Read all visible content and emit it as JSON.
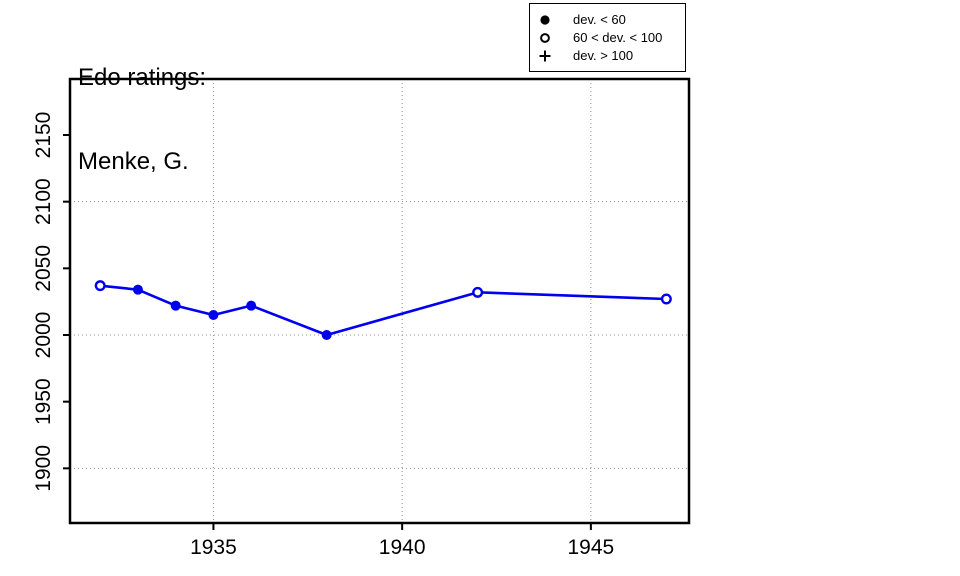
{
  "title": {
    "line1": "Edo ratings:",
    "line2": "Menke, G."
  },
  "legend": {
    "items": [
      {
        "icon": "filled-circle-icon",
        "label": "dev. < 60"
      },
      {
        "icon": "open-circle-icon",
        "label": "60 < dev. < 100"
      },
      {
        "icon": "plus-icon",
        "label": "dev. > 100"
      }
    ]
  },
  "chart_data": {
    "type": "line",
    "title": "Edo ratings: Menke, G.",
    "xlabel": "",
    "ylabel": "",
    "series": [
      {
        "name": "Edo rating",
        "x": [
          1932,
          1933,
          1934,
          1935,
          1936,
          1938,
          1942,
          1947
        ],
        "y": [
          2037,
          2034,
          2022,
          2015,
          2022,
          2000,
          2032,
          2027
        ],
        "point_style": [
          "open",
          "filled",
          "filled",
          "filled",
          "filled",
          "filled",
          "open",
          "open"
        ],
        "point_style_meaning": {
          "filled": "dev. < 60",
          "open": "60 < dev. < 100",
          "plus": "dev. > 100"
        }
      }
    ],
    "xticks": [
      1935,
      1940,
      1945
    ],
    "yticks": [
      1900,
      1950,
      2000,
      2050,
      2100,
      2150
    ],
    "grid_x": [
      1935,
      1940,
      1945
    ],
    "grid_y": [
      1900,
      2000,
      2100
    ],
    "xlim": [
      1931.2,
      1947.6
    ],
    "ylim": [
      1859,
      2192
    ],
    "grid_style": "dotted",
    "legend_position": "top",
    "line_color": "#0000EE",
    "grid_color": "#8F8F8F",
    "axis_color": "#000000",
    "background_color": "#FFFFFF"
  }
}
